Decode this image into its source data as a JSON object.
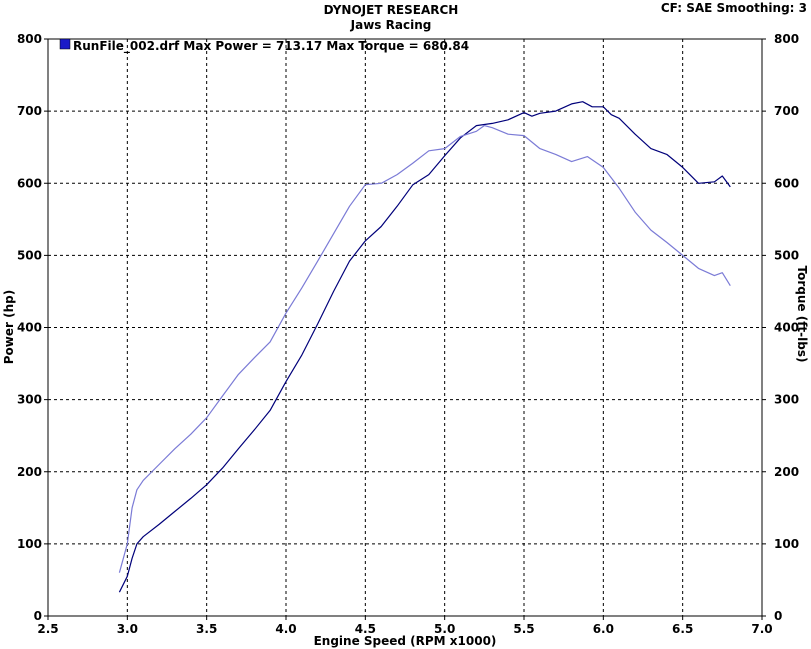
{
  "header": {
    "title": "DYNOJET RESEARCH",
    "subtitle": "Jaws Racing",
    "cf_label": "CF: SAE  Smoothing: 3"
  },
  "legend": {
    "text": "RunFile_002.drf Max Power = 713.17     Max Torque = 680.84",
    "swatch_color": "#1a1ac8"
  },
  "colors": {
    "power": "#00007a",
    "torque": "#7b7bd6",
    "grid": "#000000"
  },
  "chart_data": {
    "type": "line",
    "title": "DYNOJET RESEARCH",
    "subtitle": "Jaws Racing",
    "xlabel": "Engine Speed (RPM x1000)",
    "ylabel": "Power (hp)",
    "y2label": "Torque (ft-lbs)",
    "xlim": [
      2.5,
      7.0
    ],
    "ylim": [
      0,
      800
    ],
    "y2lim": [
      0,
      800
    ],
    "xticks": [
      "2.5",
      "3.0",
      "3.5",
      "4.0",
      "4.5",
      "5.0",
      "5.5",
      "6.0",
      "6.5",
      "7.0"
    ],
    "yticks": [
      "0",
      "100",
      "200",
      "300",
      "400",
      "500",
      "600",
      "700",
      "800"
    ],
    "grid": true,
    "legend_position": "top-left",
    "series": [
      {
        "name": "Max Power = 713.17",
        "axis": "left",
        "x": [
          2.95,
          3.0,
          3.03,
          3.06,
          3.1,
          3.2,
          3.3,
          3.4,
          3.5,
          3.6,
          3.7,
          3.8,
          3.9,
          4.0,
          4.1,
          4.2,
          4.3,
          4.4,
          4.5,
          4.6,
          4.7,
          4.8,
          4.9,
          5.0,
          5.1,
          5.2,
          5.3,
          5.4,
          5.5,
          5.55,
          5.6,
          5.7,
          5.8,
          5.87,
          5.93,
          6.0,
          6.05,
          6.1,
          6.2,
          6.3,
          6.4,
          6.5,
          6.6,
          6.7,
          6.75,
          6.8
        ],
        "values": [
          33,
          55,
          80,
          100,
          110,
          127,
          145,
          163,
          182,
          205,
          232,
          258,
          285,
          325,
          362,
          405,
          450,
          492,
          520,
          540,
          568,
          598,
          612,
          638,
          663,
          680,
          683,
          688,
          698,
          693,
          697,
          700,
          710,
          713,
          706,
          706,
          695,
          690,
          668,
          648,
          640,
          622,
          600,
          602,
          610,
          595
        ]
      },
      {
        "name": "Max Torque = 680.84",
        "axis": "right",
        "x": [
          2.95,
          3.0,
          3.03,
          3.06,
          3.1,
          3.2,
          3.3,
          3.4,
          3.5,
          3.6,
          3.7,
          3.8,
          3.9,
          4.0,
          4.1,
          4.2,
          4.3,
          4.4,
          4.5,
          4.6,
          4.7,
          4.8,
          4.9,
          5.0,
          5.1,
          5.2,
          5.25,
          5.3,
          5.4,
          5.5,
          5.6,
          5.7,
          5.8,
          5.9,
          6.0,
          6.1,
          6.2,
          6.3,
          6.4,
          6.5,
          6.6,
          6.7,
          6.75,
          6.8
        ],
        "values": [
          60,
          100,
          150,
          175,
          188,
          210,
          232,
          252,
          275,
          305,
          335,
          358,
          380,
          420,
          455,
          492,
          530,
          568,
          598,
          600,
          612,
          628,
          645,
          648,
          665,
          672,
          680,
          677,
          668,
          666,
          648,
          640,
          630,
          637,
          622,
          593,
          560,
          535,
          518,
          500,
          482,
          472,
          476,
          458
        ]
      }
    ]
  }
}
